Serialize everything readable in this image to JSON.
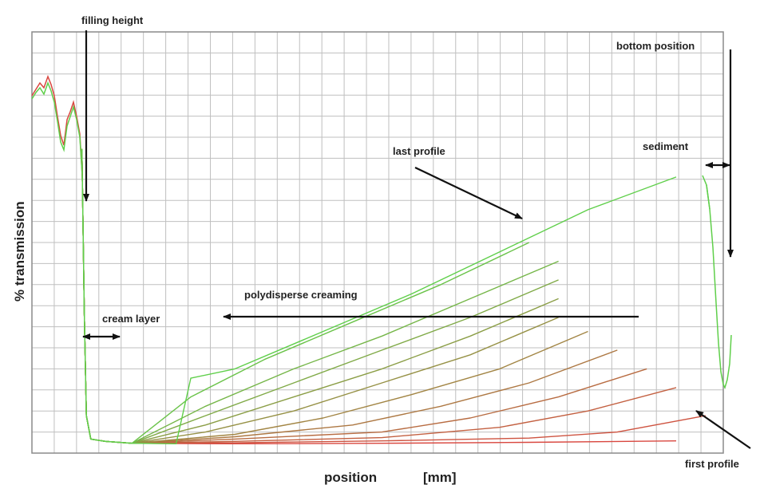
{
  "chart_data": {
    "type": "line",
    "xlabel": "position",
    "xunit": "[mm]",
    "ylabel": "% transmission",
    "grid": true,
    "legend": "none",
    "colors": {
      "first_profile": "#d9473f",
      "last_profile": "#5fcf4a"
    },
    "series": [
      {
        "x": [
          0.1,
          0.6,
          1.5,
          5,
          10,
          15,
          20,
          22.6,
          22.75,
          22.9
        ],
        "y": [
          3,
          2.5,
          2.1,
          2.0,
          2.1,
          2.3,
          2.6,
          4,
          8,
          16
        ]
      },
      {
        "x": [
          0.1,
          0.6,
          1.5,
          5,
          10,
          15,
          18,
          21,
          22.6,
          22.75,
          22.9
        ],
        "y": [
          3,
          2.5,
          2.1,
          2.2,
          2.6,
          3.2,
          4.5,
          8,
          18,
          24,
          30
        ]
      },
      {
        "x": [
          0.1,
          0.6,
          1.5,
          5,
          10,
          14,
          17,
          20,
          22.6,
          22.75,
          22.9
        ],
        "y": [
          3,
          2.5,
          2.1,
          2.5,
          3.3,
          5.5,
          9,
          14,
          24,
          30,
          36
        ]
      },
      {
        "x": [
          0.1,
          0.6,
          1.5,
          5,
          10,
          13,
          16,
          19,
          22.6,
          22.75,
          22.9
        ],
        "y": [
          3,
          2.5,
          2.1,
          3.0,
          4.5,
          7.5,
          12,
          18,
          30,
          35,
          40
        ]
      },
      {
        "x": [
          0.1,
          0.6,
          1.5,
          5,
          9,
          12,
          15,
          18,
          22.6,
          22.75,
          22.9
        ],
        "y": [
          3,
          2.5,
          2.1,
          3.5,
          6.0,
          10,
          15,
          22,
          36,
          40,
          44
        ]
      },
      {
        "x": [
          0.1,
          0.6,
          1.5,
          5,
          8,
          11,
          14,
          17,
          22.6,
          22.75,
          22.9
        ],
        "y": [
          3,
          2.5,
          2.1,
          4.0,
          7.5,
          12.5,
          18,
          26,
          42,
          45,
          48
        ]
      },
      {
        "x": [
          0.1,
          0.6,
          1.5,
          4,
          7,
          10,
          13,
          16,
          22.6,
          22.75,
          22.9
        ],
        "y": [
          3,
          2.5,
          2.1,
          4.5,
          9,
          15,
          21,
          29,
          48,
          51,
          54
        ]
      },
      {
        "x": [
          0.1,
          0.6,
          1.5,
          4,
          7,
          10,
          13,
          16,
          22.6,
          22.75,
          22.9
        ],
        "y": [
          3,
          2.5,
          2.1,
          6,
          12,
          18,
          25,
          33,
          54,
          56,
          58
        ]
      },
      {
        "x": [
          0.1,
          0.6,
          1.5,
          4,
          7,
          10,
          13,
          16,
          22.6,
          22.75,
          22.9
        ],
        "y": [
          3,
          2.5,
          2.1,
          8,
          15,
          22,
          29,
          37,
          58,
          60,
          61
        ]
      },
      {
        "x": [
          0.1,
          0.6,
          1.5,
          4,
          7,
          10,
          13,
          16,
          22.6,
          22.75,
          22.9
        ],
        "y": [
          3,
          2.5,
          2.1,
          10,
          18,
          25,
          33,
          41,
          62,
          63,
          64
        ]
      },
      {
        "x": [
          0.1,
          0.6,
          1.5,
          3.5,
          6,
          9,
          12,
          15,
          22.6,
          22.75,
          22.9
        ],
        "y": [
          3,
          2.5,
          2.1,
          12,
          20,
          28,
          36,
          45,
          65,
          66,
          67
        ]
      },
      {
        "x": [
          0.1,
          0.6,
          1.5,
          3,
          3.5,
          5,
          8,
          11,
          14,
          17,
          20,
          22.6,
          22.75,
          22.9
        ],
        "y": [
          3,
          2.5,
          2.1,
          2.0,
          16,
          18,
          26,
          34,
          43,
          52,
          59,
          64,
          67,
          70
        ]
      }
    ],
    "annotations": {
      "filling_height": "filling height",
      "bottom_position": "bottom position",
      "sediment": "sediment",
      "last_profile": "last profile",
      "polydisperse_creaming": "polydisperse creaming",
      "cream_layer": "cream layer",
      "first_profile": "first profile"
    }
  }
}
